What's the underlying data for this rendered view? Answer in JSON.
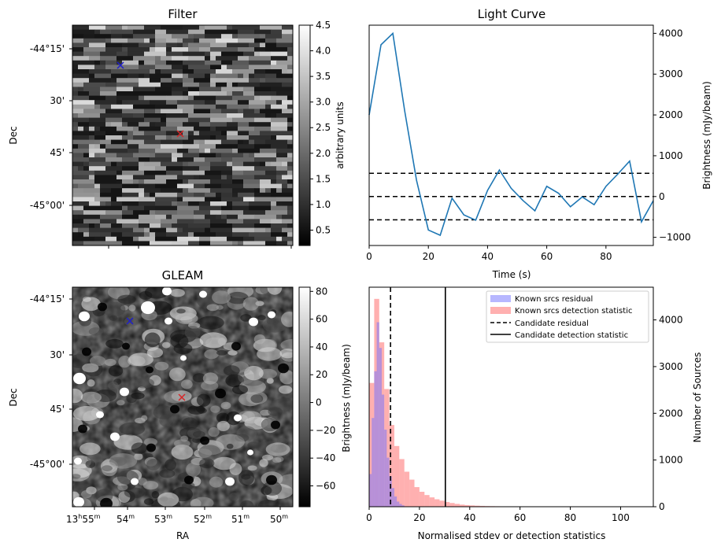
{
  "panels": {
    "filter": {
      "title": "Filter",
      "ylabel": "Dec",
      "yticks": [
        "-44°15'",
        "30'",
        "45'",
        "-45°00'"
      ],
      "colorbar": {
        "label": "arbitrary units",
        "min": 0.2,
        "max": 4.5,
        "ticks": [
          "0.5",
          "1.0",
          "1.5",
          "2.0",
          "2.5",
          "3.0",
          "3.5",
          "4.0",
          "4.5"
        ]
      },
      "markers": [
        {
          "name": "candidate",
          "color": "#d62728",
          "symbol": "x"
        },
        {
          "name": "known-source",
          "color": "#1f1fcc",
          "symbol": "x"
        }
      ]
    },
    "gleam": {
      "title": "GLEAM",
      "ylabel": "Dec",
      "xlabel": "RA",
      "yticks": [
        "-44°15'",
        "30'",
        "45'",
        "-45°00'"
      ],
      "xticks": [
        {
          "h": "13",
          "hs": "h",
          "m": "55",
          "ms": "m"
        },
        {
          "m": "54",
          "ms": "m"
        },
        {
          "m": "53",
          "ms": "m"
        },
        {
          "m": "52",
          "ms": "m"
        },
        {
          "m": "51",
          "ms": "m"
        },
        {
          "m": "50",
          "ms": "m"
        }
      ],
      "colorbar": {
        "label": "Brightness (mJy/beam)",
        "min": -75,
        "max": 83,
        "ticks": [
          "80",
          "60",
          "40",
          "20",
          "0",
          "−20",
          "−40",
          "−60"
        ]
      },
      "markers": [
        {
          "name": "candidate",
          "color": "#d62728",
          "symbol": "x"
        },
        {
          "name": "known-source",
          "color": "#1f1fcc",
          "symbol": "x"
        }
      ]
    }
  },
  "chart_data": [
    {
      "type": "line",
      "title": "Light Curve",
      "xlabel": "Time (s)",
      "ylabel": "Brightness (mJy/beam)",
      "xlim": [
        0,
        96
      ],
      "ylim": [
        -1200,
        4200
      ],
      "xticks": [
        0,
        20,
        40,
        60,
        80
      ],
      "yticks": [
        -1000,
        0,
        1000,
        2000,
        3000,
        4000
      ],
      "series": [
        {
          "name": "light curve",
          "color": "#1f77b4",
          "x": [
            0,
            4,
            8,
            12,
            16,
            20,
            24,
            28,
            32,
            36,
            40,
            44,
            48,
            52,
            56,
            60,
            64,
            68,
            72,
            76,
            80,
            84,
            88,
            92,
            96
          ],
          "y": [
            2000,
            3720,
            4000,
            2100,
            400,
            -820,
            -950,
            -40,
            -450,
            -580,
            150,
            650,
            200,
            -100,
            -350,
            250,
            80,
            -250,
            -10,
            -200,
            250,
            550,
            870,
            -620,
            -100
          ]
        }
      ],
      "hlines": [
        {
          "y": 570,
          "style": "dashed"
        },
        {
          "y": 0,
          "style": "dashed"
        },
        {
          "y": -570,
          "style": "dashed"
        }
      ]
    },
    {
      "type": "histogram",
      "xlabel": "Normalised stdev or detection statistics",
      "ylabel": "Number of Sources",
      "xlim": [
        0,
        113
      ],
      "ylim": [
        0,
        4700
      ],
      "xticks": [
        0,
        20,
        40,
        60,
        80,
        100
      ],
      "yticks": [
        0,
        1000,
        2000,
        3000,
        4000
      ],
      "bin_width": 2,
      "series": [
        {
          "name": "Known srcs residual",
          "color": "#7070ff",
          "opacity": 0.5,
          "bins": [
            [
              0,
              700
            ],
            [
              1,
              1900
            ],
            [
              2,
              2900
            ],
            [
              3,
              3950
            ],
            [
              4,
              3400
            ],
            [
              5,
              2400
            ],
            [
              6,
              1650
            ],
            [
              7,
              1050
            ],
            [
              8,
              650
            ],
            [
              9,
              400
            ],
            [
              10,
              220
            ],
            [
              11,
              110
            ],
            [
              12,
              60
            ],
            [
              13,
              30
            ]
          ]
        },
        {
          "name": "Known srcs detection statistic",
          "color": "#ff7070",
          "opacity": 0.55,
          "bins": [
            [
              0,
              2650
            ],
            [
              2,
              4450
            ],
            [
              4,
              3520
            ],
            [
              6,
              2520
            ],
            [
              8,
              1750
            ],
            [
              10,
              1300
            ],
            [
              12,
              1020
            ],
            [
              14,
              750
            ],
            [
              16,
              580
            ],
            [
              18,
              420
            ],
            [
              20,
              320
            ],
            [
              22,
              250
            ],
            [
              24,
              200
            ],
            [
              26,
              160
            ],
            [
              28,
              130
            ],
            [
              30,
              100
            ],
            [
              32,
              80
            ],
            [
              34,
              60
            ],
            [
              36,
              45
            ],
            [
              38,
              35
            ],
            [
              40,
              28
            ],
            [
              42,
              22
            ],
            [
              44,
              18
            ],
            [
              46,
              14
            ],
            [
              48,
              12
            ],
            [
              50,
              10
            ],
            [
              52,
              8
            ],
            [
              54,
              7
            ],
            [
              56,
              6
            ],
            [
              58,
              5
            ],
            [
              60,
              5
            ],
            [
              64,
              4
            ],
            [
              70,
              5
            ],
            [
              76,
              3
            ],
            [
              82,
              5
            ],
            [
              86,
              3
            ],
            [
              92,
              2
            ],
            [
              98,
              3
            ],
            [
              106,
              2
            ]
          ]
        }
      ],
      "vlines": [
        {
          "name": "Candidate residual",
          "x": 8.5,
          "style": "dashed"
        },
        {
          "name": "Candidate detection statistic",
          "x": 30.3,
          "style": "solid"
        }
      ]
    }
  ]
}
